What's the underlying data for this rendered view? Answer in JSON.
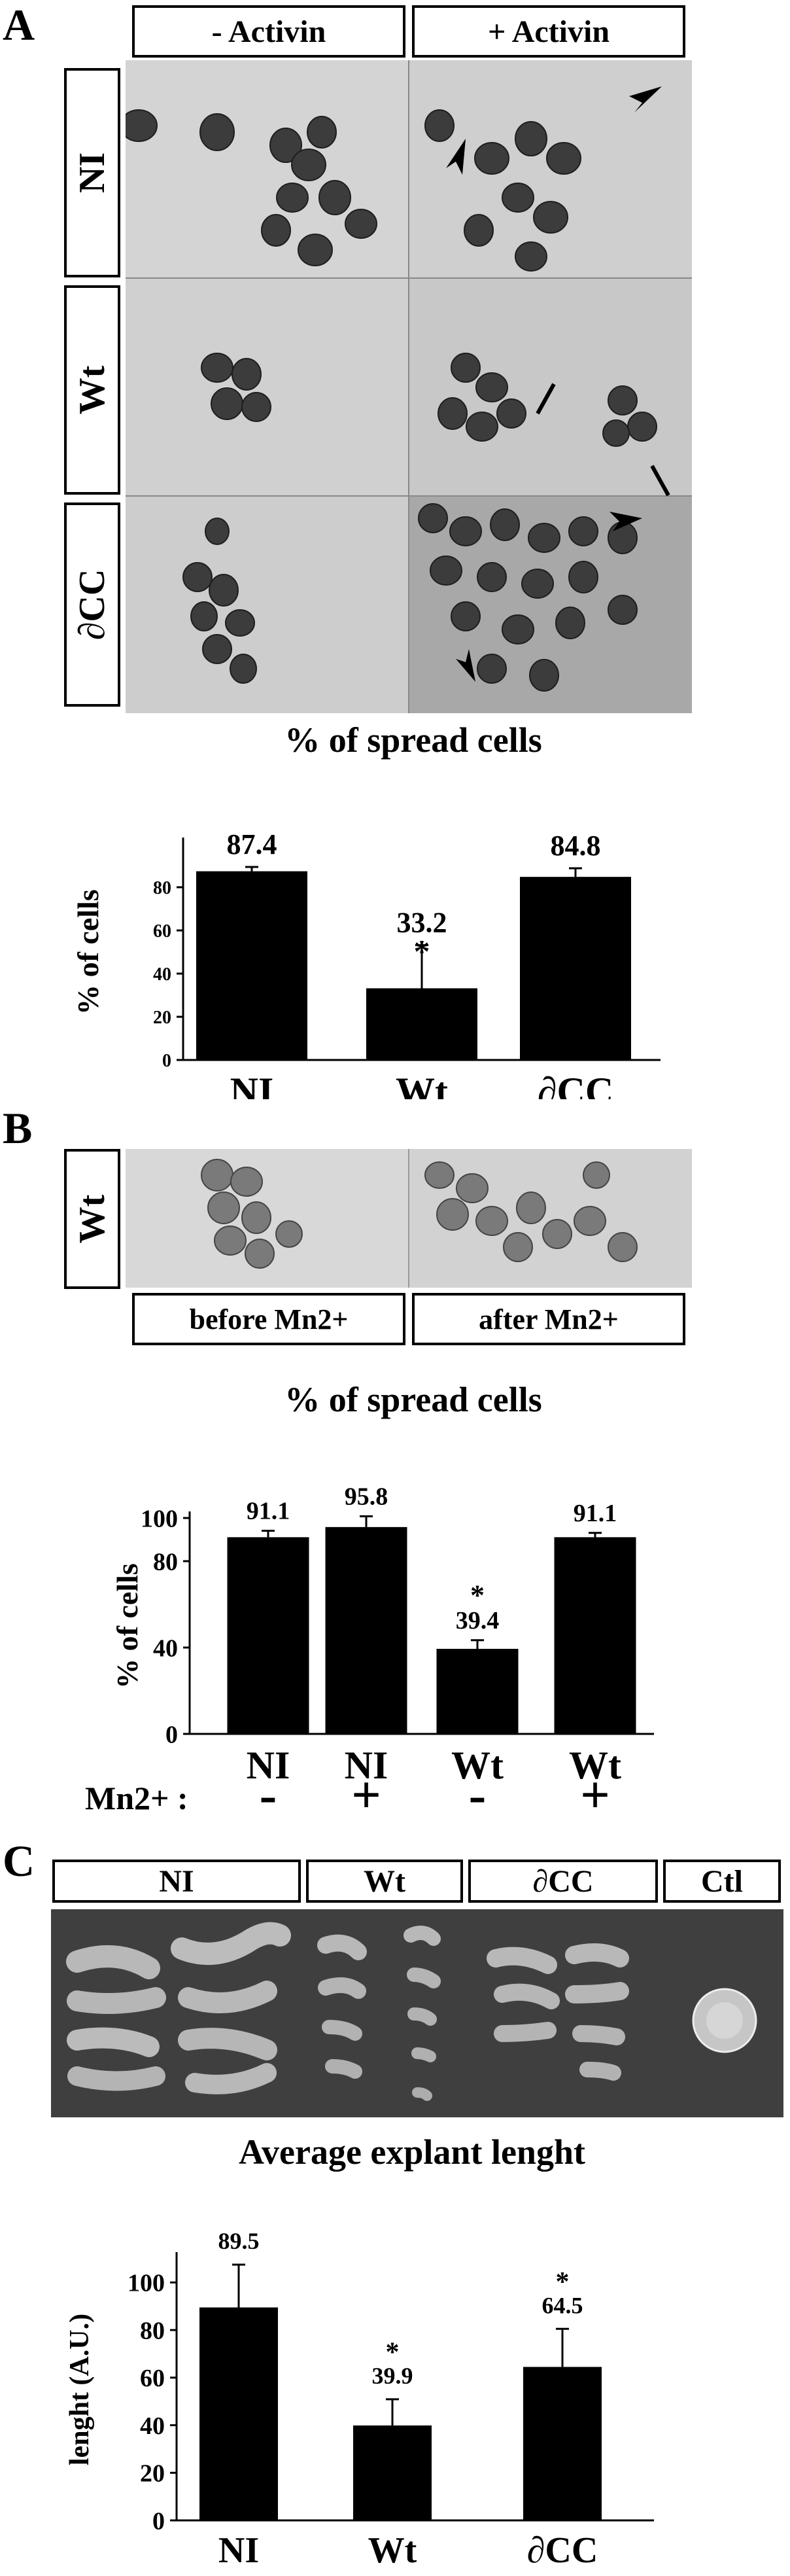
{
  "panelA": {
    "letter": "A",
    "col_labels": [
      "- Activin",
      "+ Activin"
    ],
    "row_labels": [
      "NI",
      "Wt",
      "∂CC"
    ],
    "chart_data": {
      "type": "bar",
      "title": "% of spread cells",
      "ylabel": "% of cells",
      "categories": [
        "NI",
        "Wt",
        "∂CC"
      ],
      "values": [
        87.4,
        33.2,
        84.8
      ],
      "errors": [
        2,
        20,
        4
      ],
      "value_labels": [
        "87.4",
        "33.2",
        "84.8"
      ],
      "significance": [
        "",
        "*",
        ""
      ],
      "ylim": [
        0,
        100
      ],
      "yticks": [
        "0",
        "20",
        "40",
        "60",
        "80"
      ]
    }
  },
  "panelB": {
    "letter": "B",
    "row_label": "Wt",
    "col_labels": [
      "before Mn2+",
      "after Mn2+"
    ],
    "mn_label": "Mn2+ :",
    "mn_signs": [
      "-",
      "+",
      "-",
      "+"
    ],
    "chart_data": {
      "type": "bar",
      "title": "% of spread cells",
      "ylabel": "% of cells",
      "categories": [
        "NI",
        "NI",
        "Wt",
        "Wt"
      ],
      "values": [
        91.1,
        95.8,
        39.4,
        91.1
      ],
      "errors": [
        3,
        5,
        4,
        2
      ],
      "value_labels": [
        "91.1",
        "95.8",
        "39.4",
        "91.1"
      ],
      "significance": [
        "",
        "",
        "*",
        ""
      ],
      "ylim": [
        0,
        100
      ],
      "yticks": [
        "0",
        "40",
        "80",
        "100"
      ]
    }
  },
  "panelC": {
    "letter": "C",
    "col_labels": [
      "NI",
      "Wt",
      "∂CC",
      "Ctl"
    ],
    "chart_data": {
      "type": "bar",
      "title": "Average explant lenght",
      "ylabel": "lenght (A.U.)",
      "categories": [
        "NI",
        "Wt",
        "∂CC"
      ],
      "values": [
        89.5,
        39.9,
        64.5
      ],
      "errors": [
        18,
        11,
        16
      ],
      "value_labels": [
        "89.5",
        "39.9",
        "64.5"
      ],
      "significance": [
        "",
        "*",
        "*"
      ],
      "ylim": [
        0,
        110
      ],
      "yticks": [
        "0",
        "20",
        "40",
        "60",
        "80",
        "100"
      ]
    }
  }
}
